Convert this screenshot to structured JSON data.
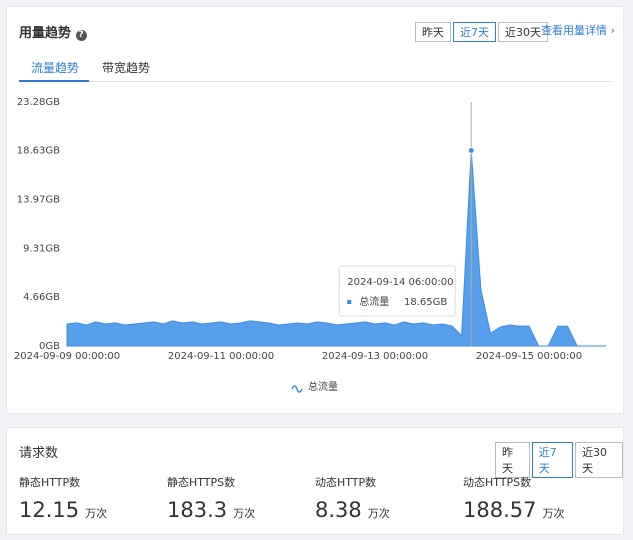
{
  "header": {
    "title": "用量趋势",
    "ranges": [
      "昨天",
      "近7天",
      "近30天"
    ],
    "selected_range": "近7天",
    "link": "查看用量详情"
  },
  "tabs": [
    "流量趋势",
    "带宽趋势"
  ],
  "active_tab": "流量趋势",
  "chart_data": {
    "type": "area",
    "x": [
      "2024-09-09 00:00:00",
      "2024-09-09 03:00:00",
      "2024-09-09 06:00:00",
      "2024-09-09 09:00:00",
      "2024-09-09 12:00:00",
      "2024-09-09 15:00:00",
      "2024-09-09 18:00:00",
      "2024-09-09 21:00:00",
      "2024-09-10 00:00:00",
      "2024-09-10 03:00:00",
      "2024-09-10 06:00:00",
      "2024-09-10 09:00:00",
      "2024-09-10 12:00:00",
      "2024-09-10 15:00:00",
      "2024-09-10 18:00:00",
      "2024-09-10 21:00:00",
      "2024-09-11 00:00:00",
      "2024-09-11 03:00:00",
      "2024-09-11 06:00:00",
      "2024-09-11 09:00:00",
      "2024-09-11 12:00:00",
      "2024-09-11 15:00:00",
      "2024-09-11 18:00:00",
      "2024-09-11 21:00:00",
      "2024-09-12 00:00:00",
      "2024-09-12 03:00:00",
      "2024-09-12 06:00:00",
      "2024-09-12 09:00:00",
      "2024-09-12 12:00:00",
      "2024-09-12 15:00:00",
      "2024-09-12 18:00:00",
      "2024-09-12 21:00:00",
      "2024-09-13 00:00:00",
      "2024-09-13 03:00:00",
      "2024-09-13 06:00:00",
      "2024-09-13 09:00:00",
      "2024-09-13 12:00:00",
      "2024-09-13 15:00:00",
      "2024-09-13 18:00:00",
      "2024-09-13 21:00:00",
      "2024-09-14 00:00:00",
      "2024-09-14 03:00:00",
      "2024-09-14 06:00:00",
      "2024-09-14 09:00:00",
      "2024-09-14 12:00:00",
      "2024-09-14 15:00:00",
      "2024-09-14 18:00:00",
      "2024-09-14 21:00:00",
      "2024-09-15 00:00:00",
      "2024-09-15 03:00:00",
      "2024-09-15 06:00:00",
      "2024-09-15 09:00:00",
      "2024-09-15 12:00:00",
      "2024-09-15 15:00:00",
      "2024-09-15 18:00:00",
      "2024-09-15 21:00:00",
      "2024-09-16 00:00:00"
    ],
    "series": [
      {
        "name": "总流量",
        "color": "#3a8ee6",
        "values": [
          2.1,
          2.2,
          2.0,
          2.3,
          2.1,
          2.2,
          2.0,
          2.1,
          2.2,
          2.3,
          2.1,
          2.4,
          2.2,
          2.3,
          2.1,
          2.2,
          2.3,
          2.1,
          2.2,
          2.4,
          2.3,
          2.2,
          2.0,
          2.1,
          2.2,
          2.1,
          2.3,
          2.2,
          2.0,
          2.1,
          2.2,
          2.3,
          2.1,
          2.2,
          2.0,
          2.3,
          2.1,
          2.2,
          2.0,
          2.1,
          1.9,
          1.0,
          18.65,
          5.4,
          1.2,
          1.8,
          2.0,
          1.9,
          1.9,
          0,
          0,
          1.9,
          1.9,
          0,
          0,
          0,
          0
        ]
      }
    ],
    "xlim": [
      "2024-09-09 00:00:00",
      "2024-09-16 00:00:00"
    ],
    "xticks": [
      "2024-09-09 00:00:00",
      "2024-09-11 00:00:00",
      "2024-09-13 00:00:00",
      "2024-09-15 00:00:00"
    ],
    "ylim": [
      0,
      23.28
    ],
    "yticks": [
      {
        "value": 0,
        "label": "0GB"
      },
      {
        "value": 4.66,
        "label": "4.66GB"
      },
      {
        "value": 9.31,
        "label": "9.31GB"
      },
      {
        "value": 13.97,
        "label": "13.97GB"
      },
      {
        "value": 18.63,
        "label": "18.63GB"
      },
      {
        "value": 23.28,
        "label": "23.28GB"
      }
    ],
    "grid": false,
    "legend": "bottom",
    "tooltip": {
      "time": "2024-09-14 06:00:00",
      "name": "总流量",
      "label": "18.65GB"
    }
  },
  "requests": {
    "title": "请求数",
    "ranges": [
      "昨天",
      "近7天",
      "近30天"
    ],
    "selected_range": "近7天",
    "stats": [
      {
        "label": "静态HTTP数",
        "value": 12.15,
        "unit": "万次"
      },
      {
        "label": "静态HTTPS数",
        "value": 183.3,
        "unit": "万次"
      },
      {
        "label": "动态HTTP数",
        "value": 8.38,
        "unit": "万次"
      },
      {
        "label": "动态HTTPS数",
        "value": 188.57,
        "unit": "万次"
      }
    ]
  }
}
